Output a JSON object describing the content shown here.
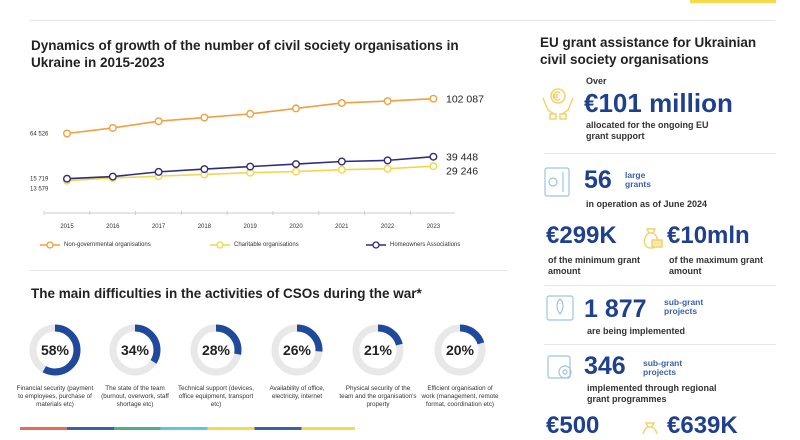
{
  "colors": {
    "ngo": "#f0a040",
    "charitable": "#f5d64a",
    "homeowners": "#2e2d7a",
    "accent_blue": "#1f3f8f",
    "donut_track": "#e8e8e8",
    "donut_fill": "#1f4a9c",
    "top_yellow": "#f7d94c"
  },
  "left": {
    "chart_title": "Dynamics of growth of the number of civil society organisations in Ukraine in 2015-2023",
    "difficulties_title": "The main difficulties in the activities of CSOs during the war*"
  },
  "chart_data": [
    {
      "type": "line",
      "title": "Dynamics of growth of the number of civil society organisations in Ukraine in 2015-2023",
      "x": [
        "2015",
        "2016",
        "2017",
        "2018",
        "2019",
        "2020",
        "2021",
        "2022",
        "2023"
      ],
      "series": [
        {
          "name": "Non-governmental organisations",
          "color": "#f0a040",
          "values": [
            64526,
            70500,
            77800,
            81700,
            85700,
            91600,
            97500,
            99500,
            102087
          ],
          "start_label": "64 526",
          "end_label": "102 087"
        },
        {
          "name": "Charitable organisations",
          "color": "#f5d64a",
          "values": [
            13579,
            16500,
            18500,
            20300,
            22200,
            23400,
            25400,
            26500,
            29246
          ],
          "start_label": "13 579",
          "end_label": "29 246"
        },
        {
          "name": "Homeowners Associations",
          "color": "#2e2d7a",
          "values": [
            15719,
            18000,
            23100,
            26100,
            28800,
            31500,
            34300,
            35500,
            39448
          ],
          "start_label": "15 719",
          "end_label": "39 448"
        }
      ],
      "grid": false,
      "legend": "bottom"
    },
    {
      "type": "donut",
      "title": "The main difficulties in the activities of CSOs during the war*",
      "items": [
        {
          "value": 58,
          "label": "58%",
          "caption": "Financial security (payment to employees, purchase of materials etc)"
        },
        {
          "value": 34,
          "label": "34%",
          "caption": "The state of the team (burnout, overwork, staff shortage etc)"
        },
        {
          "value": 28,
          "label": "28%",
          "caption": "Technical support (devices, office equipment, transport etc)"
        },
        {
          "value": 26,
          "label": "26%",
          "caption": "Availability of office, electricity, internet"
        },
        {
          "value": 21,
          "label": "21%",
          "caption": "Physical security of the team and the organisation's property"
        },
        {
          "value": 20,
          "label": "20%",
          "caption": "Efficient organisation of work (management, remote format, coordination etc)"
        }
      ]
    }
  ],
  "right": {
    "title": "EU grant assistance for Ukrainian civil society organisations",
    "over": "Over",
    "total": "€101 million",
    "total_caption": "allocated for the ongoing EU grant support",
    "large_num": "56",
    "large_sup": "large grants",
    "large_caption": "in operation as of June 2024",
    "min_amount": "€299K",
    "min_caption": "of the minimum grant amount",
    "max_amount": "€10mln",
    "max_caption": "of the maximum grant amount",
    "sub_num": "1 877",
    "sub_sup": "sub-grant projects",
    "sub_caption": "are being implemented",
    "reg_num": "346",
    "reg_sup": "sub-grant projects",
    "reg_caption": "implemented through regional grant programmes",
    "bottom_left": "€500",
    "bottom_right": "€639K"
  },
  "icons": [
    "hands-euro-icon",
    "document-gear-icon",
    "money-bag-icon",
    "rocket-document-icon",
    "map-gear-icon"
  ]
}
